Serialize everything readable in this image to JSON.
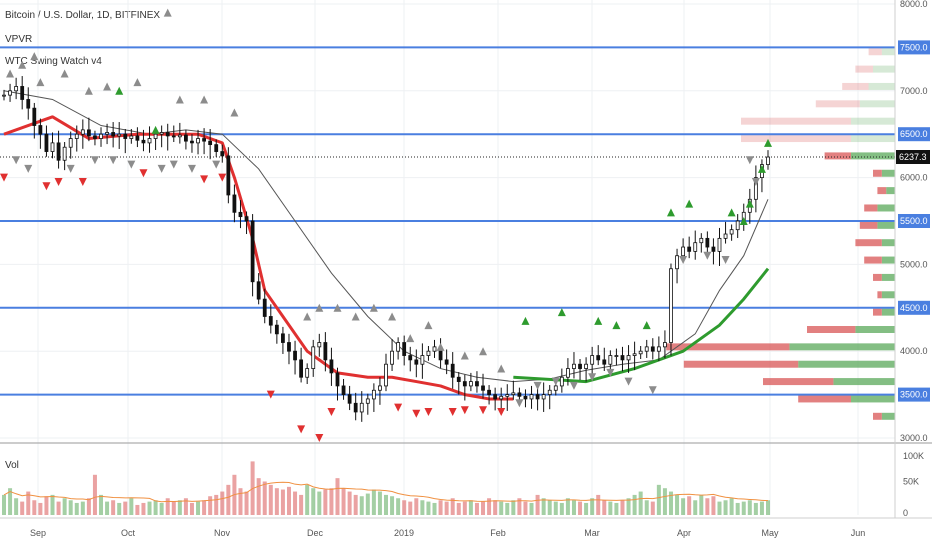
{
  "legend": {
    "symbol_line": "Bitcoin / U.S. Dollar, 1D, BITFINEX",
    "indicator_1": "VPVR",
    "indicator_2": "WTC Swing Watch v4",
    "volume_label": "Vol"
  },
  "colors": {
    "hline": "#4a7fe0",
    "bull": "#5aa85a",
    "bear": "#d85555",
    "trend_red": "#e03030",
    "trend_green": "#2e9b2e",
    "ma": "#555555",
    "candle": "#111111",
    "grey_marker": "#8c8c8c"
  },
  "chart_data": {
    "type": "candlestick",
    "symbol": "Bitcoin / U.S. Dollar",
    "interval": "1D",
    "exchange": "BITFINEX",
    "price_axis": {
      "ticks": [
        "8000.0",
        "7500.0",
        "7000.0",
        "6500.0",
        "6000.0",
        "5500.0",
        "5000.0",
        "4500.0",
        "4000.0",
        "3500.0",
        "3000.0"
      ],
      "range": [
        3000,
        8000
      ]
    },
    "highlighted_levels": [
      7500,
      6500,
      5500,
      4500,
      3500
    ],
    "current_price": "6237.3",
    "time_axis": [
      "Sep",
      "Oct",
      "Nov",
      "Dec",
      "2019",
      "Feb",
      "Mar",
      "Apr",
      "May",
      "Jun"
    ],
    "volume_axis": [
      "100K",
      "50K",
      "0"
    ],
    "closes": [
      6950,
      7000,
      7050,
      6900,
      6800,
      6600,
      6500,
      6300,
      6400,
      6200,
      6350,
      6450,
      6500,
      6550,
      6480,
      6450,
      6500,
      6520,
      6480,
      6500,
      6450,
      6480,
      6430,
      6400,
      6450,
      6500,
      6520,
      6480,
      6470,
      6490,
      6420,
      6400,
      6450,
      6420,
      6380,
      6300,
      6250,
      5800,
      5600,
      5550,
      5500,
      4800,
      4600,
      4400,
      4300,
      4200,
      4100,
      4000,
      3900,
      3700,
      3800,
      4050,
      4100,
      3900,
      3750,
      3600,
      3500,
      3400,
      3300,
      3400,
      3450,
      3550,
      3600,
      3850,
      4000,
      4100,
      3950,
      3900,
      3850,
      3950,
      4000,
      4050,
      3900,
      3850,
      3700,
      3650,
      3600,
      3650,
      3600,
      3550,
      3500,
      3450,
      3480,
      3500,
      3520,
      3480,
      3450,
      3500,
      3450,
      3500,
      3550,
      3600,
      3700,
      3800,
      3850,
      3800,
      3850,
      3950,
      3900,
      3850,
      3950,
      3950,
      3900,
      3950,
      3970,
      4000,
      4050,
      4000,
      4050,
      4100,
      4950,
      5100,
      5200,
      5150,
      5250,
      5300,
      5200,
      5150,
      5300,
      5350,
      5400,
      5500,
      5600,
      5750,
      6000,
      6150,
      6237
    ],
    "trend_line_red": [
      [
        0,
        6500
      ],
      [
        8,
        6700
      ],
      [
        14,
        6450
      ],
      [
        22,
        6500
      ],
      [
        32,
        6500
      ],
      [
        36,
        6400
      ],
      [
        38,
        6000
      ],
      [
        41,
        5300
      ],
      [
        43,
        4700
      ],
      [
        46,
        4400
      ],
      [
        50,
        4000
      ],
      [
        55,
        3750
      ],
      [
        60,
        3700
      ],
      [
        64,
        3700
      ],
      [
        68,
        3650
      ],
      [
        72,
        3600
      ],
      [
        76,
        3500
      ],
      [
        80,
        3450
      ],
      [
        84,
        3450
      ]
    ],
    "trend_line_green": [
      [
        84,
        3700
      ],
      [
        96,
        3650
      ],
      [
        104,
        3800
      ],
      [
        112,
        4000
      ],
      [
        118,
        4300
      ],
      [
        122,
        4600
      ],
      [
        126,
        4950
      ]
    ],
    "ma_line": [
      [
        0,
        7000
      ],
      [
        8,
        6900
      ],
      [
        16,
        6600
      ],
      [
        24,
        6500
      ],
      [
        30,
        6550
      ],
      [
        36,
        6500
      ],
      [
        42,
        6100
      ],
      [
        48,
        5500
      ],
      [
        54,
        4900
      ],
      [
        60,
        4400
      ],
      [
        66,
        4000
      ],
      [
        72,
        3800
      ],
      [
        78,
        3700
      ],
      [
        84,
        3650
      ],
      [
        90,
        3680
      ],
      [
        96,
        3780
      ],
      [
        102,
        3850
      ],
      [
        108,
        3900
      ],
      [
        114,
        4200
      ],
      [
        118,
        4700
      ],
      [
        122,
        5100
      ],
      [
        126,
        5750
      ]
    ],
    "markers_down_red": [
      [
        0,
        6000
      ],
      [
        7,
        5900
      ],
      [
        9,
        5950
      ],
      [
        13,
        5950
      ],
      [
        23,
        6050
      ],
      [
        33,
        5980
      ],
      [
        36,
        6000
      ],
      [
        44,
        3500
      ],
      [
        49,
        3100
      ],
      [
        52,
        3000
      ],
      [
        54,
        3300
      ],
      [
        65,
        3350
      ],
      [
        68,
        3280
      ],
      [
        70,
        3300
      ],
      [
        74,
        3300
      ],
      [
        76,
        3320
      ],
      [
        79,
        3320
      ],
      [
        82,
        3300
      ]
    ],
    "markers_up_green": [
      [
        19,
        7000
      ],
      [
        25,
        6550
      ],
      [
        86,
        4350
      ],
      [
        92,
        4450
      ],
      [
        98,
        4350
      ],
      [
        101,
        4300
      ],
      [
        106,
        4300
      ],
      [
        110,
        5600
      ],
      [
        113,
        5700
      ],
      [
        120,
        5600
      ],
      [
        122,
        5500
      ],
      [
        123,
        5700
      ],
      [
        125,
        6100
      ],
      [
        126,
        6400
      ]
    ],
    "markers_up_grey": [
      [
        1,
        7200
      ],
      [
        3,
        7300
      ],
      [
        5,
        7400
      ],
      [
        6,
        7100
      ],
      [
        10,
        7200
      ],
      [
        14,
        7000
      ],
      [
        17,
        7050
      ],
      [
        22,
        7100
      ],
      [
        27,
        7900
      ],
      [
        29,
        6900
      ],
      [
        33,
        6900
      ],
      [
        38,
        6750
      ],
      [
        50,
        4400
      ],
      [
        52,
        4500
      ],
      [
        55,
        4500
      ],
      [
        58,
        4400
      ],
      [
        61,
        4500
      ],
      [
        64,
        4400
      ],
      [
        67,
        4150
      ],
      [
        70,
        4300
      ],
      [
        72,
        4050
      ],
      [
        76,
        3950
      ],
      [
        79,
        4000
      ],
      [
        82,
        3800
      ]
    ],
    "markers_down_grey": [
      [
        2,
        6200
      ],
      [
        4,
        6100
      ],
      [
        11,
        6100
      ],
      [
        15,
        6200
      ],
      [
        18,
        6200
      ],
      [
        21,
        6150
      ],
      [
        26,
        6100
      ],
      [
        28,
        6150
      ],
      [
        31,
        6100
      ],
      [
        35,
        6150
      ],
      [
        85,
        3400
      ],
      [
        88,
        3600
      ],
      [
        91,
        3650
      ],
      [
        94,
        3600
      ],
      [
        97,
        3700
      ],
      [
        100,
        3750
      ],
      [
        103,
        3650
      ],
      [
        107,
        3550
      ],
      [
        112,
        5050
      ],
      [
        116,
        5100
      ],
      [
        119,
        5050
      ],
      [
        123,
        6200
      ],
      [
        124,
        5950
      ]
    ],
    "vpvr": [
      {
        "price": 3250,
        "up": 3,
        "down": 2
      },
      {
        "price": 3450,
        "up": 10,
        "down": 12
      },
      {
        "price": 3650,
        "up": 14,
        "down": 16
      },
      {
        "price": 3850,
        "up": 22,
        "down": 26
      },
      {
        "price": 4050,
        "up": 24,
        "down": 28
      },
      {
        "price": 4250,
        "up": 9,
        "down": 11
      },
      {
        "price": 4450,
        "up": 3,
        "down": 2
      },
      {
        "price": 4650,
        "up": 3,
        "down": 1
      },
      {
        "price": 4850,
        "up": 3,
        "down": 2
      },
      {
        "price": 5050,
        "up": 3,
        "down": 4
      },
      {
        "price": 5250,
        "up": 3,
        "down": 6
      },
      {
        "price": 5450,
        "up": 4,
        "down": 4
      },
      {
        "price": 5650,
        "up": 4,
        "down": 3
      },
      {
        "price": 5850,
        "up": 2,
        "down": 2
      },
      {
        "price": 6050,
        "up": 3,
        "down": 2
      },
      {
        "price": 6250,
        "up": 10,
        "down": 6
      },
      {
        "price": 6450,
        "up": 10,
        "down": 25
      },
      {
        "price": 6650,
        "up": 10,
        "down": 25
      },
      {
        "price": 6850,
        "up": 8,
        "down": 10
      },
      {
        "price": 7050,
        "up": 6,
        "down": 6
      },
      {
        "price": 7250,
        "up": 5,
        "down": 4
      },
      {
        "price": 7450,
        "up": 3,
        "down": 3
      }
    ],
    "volume": [
      30,
      40,
      25,
      20,
      35,
      22,
      18,
      28,
      30,
      20,
      25,
      22,
      18,
      20,
      25,
      60,
      30,
      20,
      22,
      18,
      20,
      25,
      15,
      18,
      20,
      22,
      18,
      25,
      20,
      22,
      25,
      18,
      20,
      22,
      28,
      30,
      35,
      45,
      60,
      40,
      35,
      80,
      55,
      50,
      45,
      40,
      38,
      42,
      35,
      30,
      45,
      40,
      35,
      38,
      40,
      55,
      40,
      35,
      30,
      28,
      32,
      38,
      35,
      30,
      28,
      25,
      22,
      20,
      25,
      22,
      20,
      18,
      22,
      20,
      25,
      18,
      20,
      22,
      18,
      20,
      25,
      22,
      20,
      18,
      22,
      25,
      20,
      18,
      30,
      25,
      22,
      20,
      18,
      25,
      22,
      20,
      18,
      25,
      30,
      22,
      20,
      18,
      22,
      25,
      30,
      35,
      22,
      20,
      45,
      40,
      35,
      30,
      25,
      28,
      22,
      30,
      25,
      28,
      20,
      22,
      25,
      18,
      20,
      22,
      18,
      20,
      22
    ]
  }
}
